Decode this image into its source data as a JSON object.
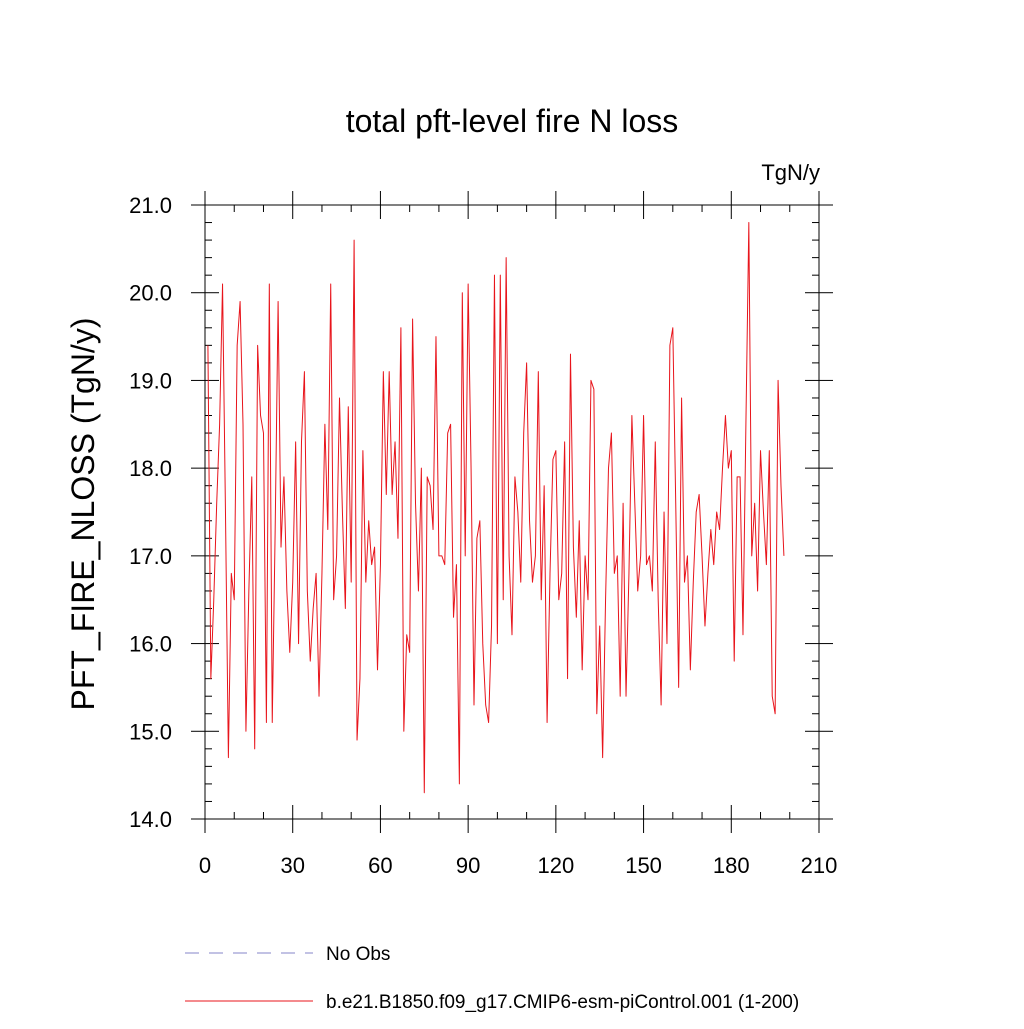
{
  "chart_data": {
    "type": "line",
    "title": "total pft-level fire N loss",
    "units_label": "TgN/y",
    "xlabel": "",
    "ylabel": "PFT_FIRE_NLOSS  (TgN/y)",
    "xlim": [
      0,
      210
    ],
    "ylim": [
      14.0,
      21.0
    ],
    "x_ticks": [
      0,
      30,
      60,
      90,
      120,
      150,
      180,
      210
    ],
    "x_tick_labels": [
      "0",
      "30",
      "60",
      "90",
      "120",
      "150",
      "180",
      "210"
    ],
    "y_ticks": [
      14.0,
      15.0,
      16.0,
      17.0,
      18.0,
      19.0,
      20.0,
      21.0
    ],
    "y_tick_labels": [
      "14.0",
      "15.0",
      "16.0",
      "17.0",
      "18.0",
      "19.0",
      "20.0",
      "21.0"
    ],
    "grid": false,
    "legend_position": "bottom",
    "series": [
      {
        "name": "b.e21.B1850.f09_g17.CMIP6-esm-piControl.001 (1-200)",
        "color": "#e8141b",
        "style": "solid",
        "x_start": 1,
        "values": [
          19.4,
          15.6,
          16.5,
          17.6,
          18.5,
          20.1,
          17.5,
          14.7,
          16.8,
          16.5,
          19.4,
          19.9,
          18.5,
          15.0,
          16.6,
          17.9,
          14.8,
          19.4,
          18.6,
          18.4,
          15.1,
          20.1,
          15.1,
          17.3,
          19.9,
          17.1,
          17.9,
          16.6,
          15.9,
          16.7,
          18.3,
          16.0,
          18.3,
          19.1,
          16.6,
          15.8,
          16.4,
          16.8,
          15.4,
          16.8,
          18.5,
          17.3,
          20.1,
          16.5,
          17.0,
          18.8,
          17.5,
          16.4,
          18.7,
          16.7,
          20.6,
          14.9,
          15.6,
          18.2,
          16.7,
          17.4,
          16.9,
          17.1,
          15.7,
          16.9,
          19.1,
          17.7,
          19.1,
          17.7,
          18.3,
          17.2,
          19.6,
          15.0,
          16.1,
          15.9,
          19.7,
          17.6,
          16.6,
          18.0,
          14.3,
          17.9,
          17.8,
          17.3,
          19.5,
          17.0,
          17.0,
          16.9,
          18.4,
          18.5,
          16.3,
          16.9,
          14.4,
          20.0,
          17.0,
          20.1,
          18.0,
          15.3,
          17.2,
          17.4,
          16.0,
          15.3,
          15.1,
          16.2,
          20.2,
          16.0,
          20.2,
          16.5,
          20.4,
          17.0,
          16.1,
          17.9,
          17.5,
          16.7,
          18.4,
          19.2,
          17.4,
          16.7,
          17.0,
          19.1,
          16.5,
          17.8,
          15.1,
          16.8,
          18.1,
          18.2,
          16.5,
          16.8,
          18.3,
          15.6,
          19.3,
          17.1,
          16.3,
          17.4,
          15.7,
          17.0,
          16.5,
          19.0,
          18.9,
          15.2,
          16.2,
          14.7,
          16.5,
          18.0,
          18.4,
          16.8,
          17.0,
          15.4,
          17.6,
          15.4,
          16.8,
          18.6,
          17.6,
          16.6,
          17.0,
          18.6,
          16.9,
          17.0,
          16.6,
          18.3,
          16.5,
          15.3,
          17.5,
          16.0,
          19.4,
          19.6,
          17.6,
          15.5,
          18.8,
          16.7,
          17.0,
          15.7,
          16.7,
          17.5,
          17.7,
          17.0,
          16.2,
          16.8,
          17.3,
          16.9,
          17.5,
          17.3,
          18.0,
          18.6,
          18.0,
          18.2,
          15.8,
          17.9,
          17.9,
          16.1,
          18.5,
          20.8,
          17.0,
          17.6,
          16.6,
          18.2,
          17.5,
          16.9,
          18.2,
          15.4,
          15.2,
          19.0,
          17.8,
          17.0
        ]
      },
      {
        "name": "No Obs",
        "color": "#8585c8",
        "style": "dashed",
        "values": []
      }
    ]
  }
}
